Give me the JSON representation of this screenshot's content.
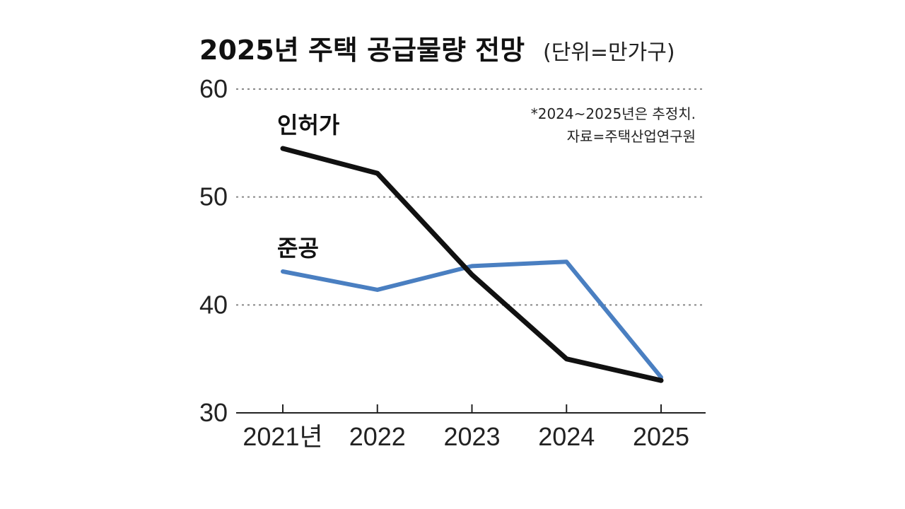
{
  "chart_data": {
    "type": "line",
    "title": "2025년 주택 공급물량 전망",
    "unit": "(단위=만가구)",
    "x": [
      "2021년",
      "2022",
      "2023",
      "2024",
      "2025"
    ],
    "ylim": [
      30,
      60
    ],
    "yticks": [
      "30",
      "40",
      "50",
      "60"
    ],
    "grid": true,
    "notes": [
      "*2024~2025년은 추정치.",
      "자료=주택산업연구원"
    ],
    "series": [
      {
        "name": "인허가",
        "color": "#111111",
        "values": [
          54.5,
          52.2,
          42.8,
          35.0,
          33.0
        ]
      },
      {
        "name": "준공",
        "color": "#4a7fc1",
        "values": [
          43.1,
          41.4,
          43.6,
          44.0,
          33.3
        ]
      }
    ]
  }
}
